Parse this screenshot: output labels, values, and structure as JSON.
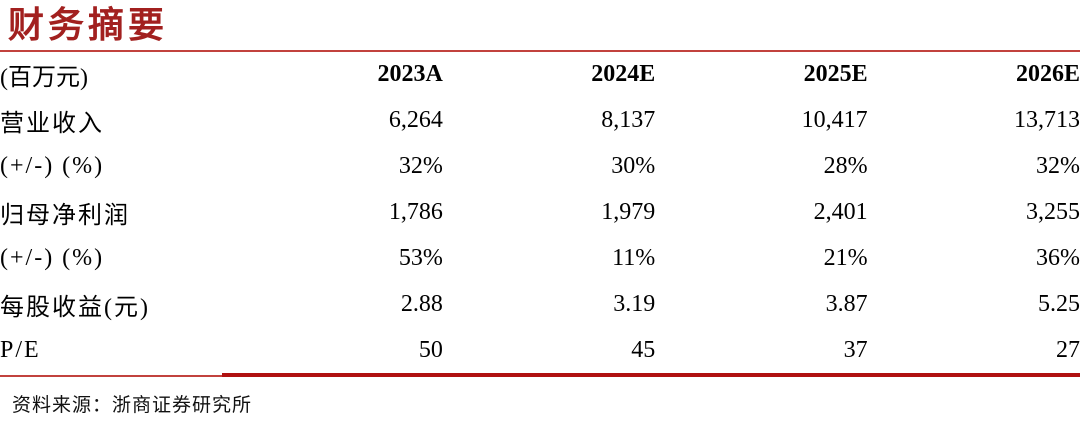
{
  "title": "财务摘要",
  "colors": {
    "title_red": "#A2201F",
    "rule_red": "#C2423D",
    "thick_rule_red": "#B01111"
  },
  "table": {
    "unit_label": "(百万元)",
    "columns": [
      "2023A",
      "2024E",
      "2025E",
      "2026E"
    ],
    "rows": [
      {
        "label": "营业收入",
        "values": [
          "6,264",
          "8,137",
          "10,417",
          "13,713"
        ]
      },
      {
        "label": "(+/-) (%)",
        "values": [
          "32%",
          "30%",
          "28%",
          "32%"
        ]
      },
      {
        "label": "归母净利润",
        "values": [
          "1,786",
          "1,979",
          "2,401",
          "3,255"
        ]
      },
      {
        "label": "(+/-) (%)",
        "values": [
          "53%",
          "11%",
          "21%",
          "36%"
        ]
      },
      {
        "label": "每股收益(元)",
        "values": [
          "2.88",
          "3.19",
          "3.87",
          "5.25"
        ]
      },
      {
        "label": "P/E",
        "values": [
          "50",
          "45",
          "37",
          "27"
        ]
      }
    ]
  },
  "footer": {
    "source": "资料来源：浙商证券研究所"
  }
}
